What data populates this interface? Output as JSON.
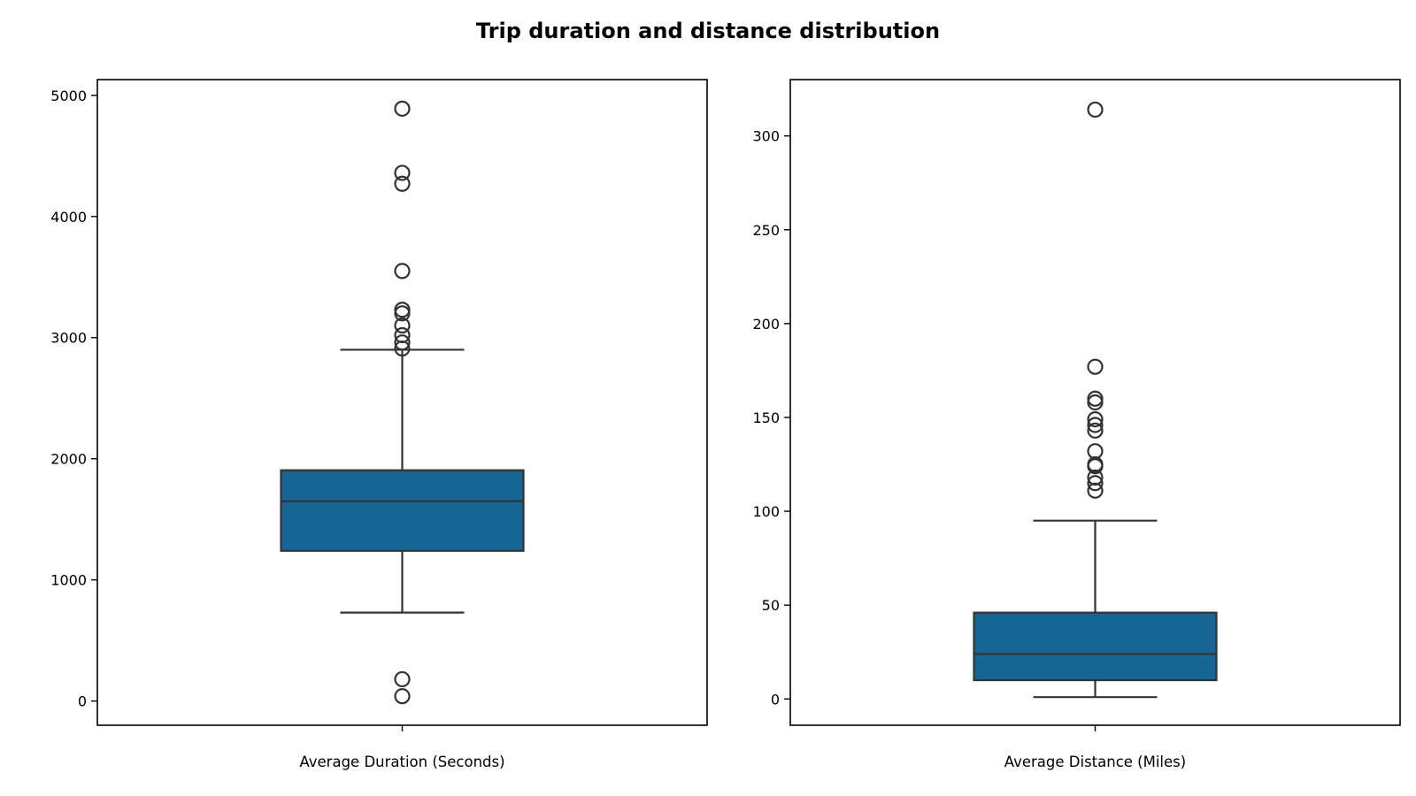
{
  "title": "Trip duration and distance distribution",
  "colors": {
    "box_fill": "#176594",
    "line": "#333333",
    "frame": "#000000",
    "background": "#ffffff"
  },
  "chart_data": [
    {
      "type": "box",
      "xlabel": "Average Duration (Seconds)",
      "ylabel": "",
      "ylim": [
        -200,
        5130
      ],
      "yticks": [
        0,
        1000,
        2000,
        3000,
        4000,
        5000
      ],
      "ytick_labels": [
        "0",
        "1000",
        "2000",
        "3000",
        "4000",
        "5000"
      ],
      "grid": false,
      "box": {
        "whisker_low": 730,
        "q1": 1240,
        "median": 1650,
        "q3": 1905,
        "whisker_high": 2900
      },
      "outliers": [
        4890,
        4360,
        4270,
        3550,
        3230,
        3200,
        3100,
        3020,
        2960,
        2910,
        180,
        40
      ]
    },
    {
      "type": "box",
      "xlabel": "Average Distance (Miles)",
      "ylabel": "",
      "ylim": [
        -14,
        330
      ],
      "yticks": [
        0,
        50,
        100,
        150,
        200,
        250,
        300
      ],
      "ytick_labels": [
        "0",
        "50",
        "100",
        "150",
        "200",
        "250",
        "300"
      ],
      "grid": false,
      "box": {
        "whisker_low": 1,
        "q1": 10,
        "median": 24,
        "q3": 46,
        "whisker_high": 95
      },
      "outliers": [
        314,
        177,
        160,
        158,
        149,
        146,
        143,
        132,
        125,
        124,
        118,
        115,
        111
      ]
    }
  ]
}
